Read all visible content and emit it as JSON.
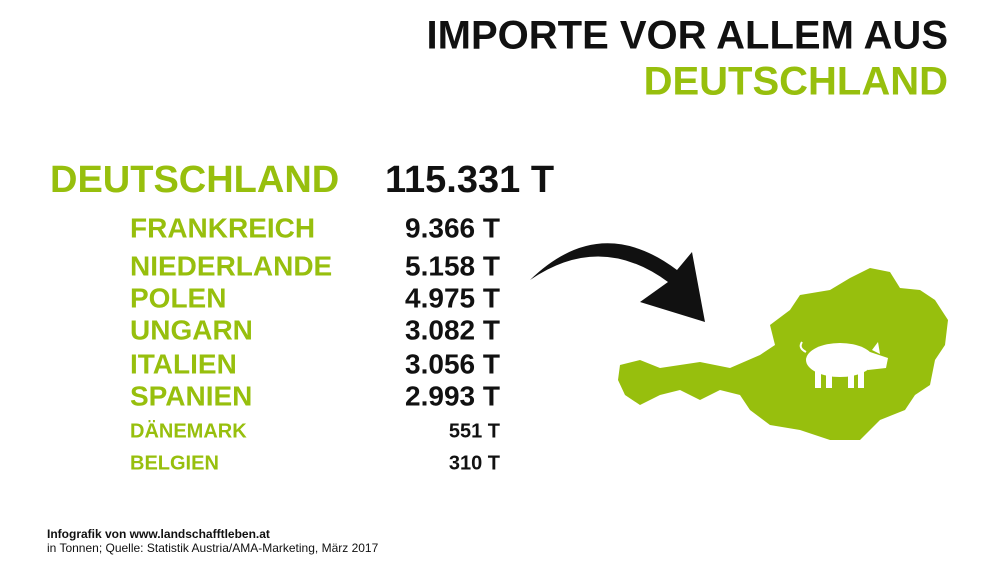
{
  "header": {
    "title_line1": "IMPORTE VOR ALLEM AUS",
    "title_line2": "DEUTSCHLAND"
  },
  "table": {
    "rows": [
      [
        "DEUTSCHLAND",
        "115.331 T"
      ],
      [
        "FRANKREICH",
        "9.366 T"
      ],
      [
        "NIEDERLANDE",
        "5.158 T"
      ],
      [
        "POLEN",
        "4.975 T"
      ],
      [
        "UNGARN",
        "3.082 T"
      ],
      [
        "ITALIEN",
        "3.056 T"
      ],
      [
        "SPANIEN",
        "2.993 T"
      ],
      [
        "DÄNEMARK",
        "551 T"
      ],
      [
        "BELGIEN",
        "310 T"
      ]
    ]
  },
  "footer": {
    "credit": "Infografik von www.landschafftleben.at",
    "source": "in Tonnen; Quelle: Statistik Austria/AMA-Marketing, März 2017"
  }
}
